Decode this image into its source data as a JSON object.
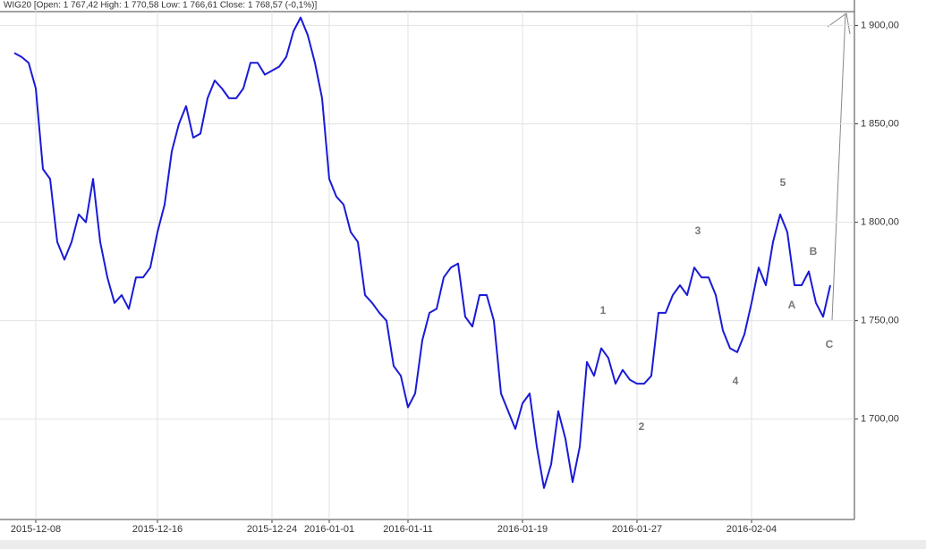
{
  "chart_data": {
    "type": "line",
    "title": "WIG20 [Open: 1 767,42  High: 1 770,58  Low: 1 766,61  Close: 1 768,57  (-0,1%)]",
    "categories": [
      null,
      null,
      null,
      "2015-12-08",
      null,
      null,
      null,
      null,
      null,
      null,
      null,
      null,
      null,
      null,
      null,
      null,
      null,
      null,
      null,
      null,
      "2015-12-16",
      null,
      null,
      null,
      null,
      null,
      null,
      null,
      null,
      null,
      null,
      null,
      null,
      null,
      null,
      null,
      "2015-12-24",
      null,
      null,
      null,
      null,
      null,
      null,
      null,
      "2016-01-01",
      null,
      null,
      null,
      null,
      null,
      null,
      null,
      null,
      null,
      null,
      "2016-01-11",
      null,
      null,
      null,
      null,
      null,
      null,
      null,
      null,
      null,
      null,
      null,
      null,
      null,
      null,
      null,
      "2016-01-19",
      null,
      null,
      null,
      null,
      null,
      null,
      null,
      null,
      null,
      null,
      null,
      null,
      null,
      null,
      null,
      "2016-01-27",
      null,
      null,
      null,
      null,
      null,
      null,
      null,
      null,
      null,
      null,
      null,
      null,
      null,
      null,
      null,
      "2016-02-04",
      null,
      null,
      null,
      null,
      null,
      null,
      null,
      null,
      null,
      null,
      null
    ],
    "series": [
      {
        "name": "WIG20",
        "color": "#1a1ad6",
        "values": [
          1886,
          1884,
          1881,
          1868,
          1827,
          1822,
          1790,
          1781,
          1790,
          1804,
          1800,
          1822,
          1790,
          1772,
          1759,
          1763,
          1756,
          1772,
          1772,
          1777,
          1795,
          1809,
          1836,
          1850,
          1859,
          1843,
          1845,
          1863,
          1872,
          1868,
          1863,
          1863,
          1868,
          1881,
          1881,
          1875,
          1877,
          1879,
          1884,
          1897,
          1904,
          1895,
          1881,
          1863,
          1822,
          1813,
          1809,
          1795,
          1790,
          1763,
          1759,
          1754,
          1750,
          1727,
          1722,
          1706,
          1713,
          1740,
          1754,
          1756,
          1772,
          1777,
          1779,
          1752,
          1747,
          1763,
          1763,
          1750,
          1713,
          1704,
          1695,
          1708,
          1713,
          1686,
          1665,
          1677,
          1704,
          1690,
          1668,
          1686,
          1729,
          1722,
          1736,
          1731,
          1718,
          1725,
          1720,
          1718,
          1718,
          1722,
          1754,
          1754,
          1763,
          1768,
          1763,
          1777,
          1772,
          1772,
          1763,
          1745,
          1736,
          1734,
          1743,
          1759,
          1777,
          1768,
          1790,
          1804,
          1795,
          1768,
          1768,
          1775,
          1759,
          1752,
          1768
        ]
      }
    ],
    "ylim": [
      1649,
      1907
    ],
    "yticks": [
      {
        "value": 1700,
        "label": "1 700,00"
      },
      {
        "value": 1750,
        "label": "1 750,00"
      },
      {
        "value": 1800,
        "label": "1 800,00"
      },
      {
        "value": 1850,
        "label": "1 850,00"
      },
      {
        "value": 1900,
        "label": "1 900,00"
      }
    ],
    "grid": true,
    "annotations": [
      "1",
      "2",
      "3",
      "4",
      "5",
      "A",
      "B",
      "C"
    ]
  }
}
